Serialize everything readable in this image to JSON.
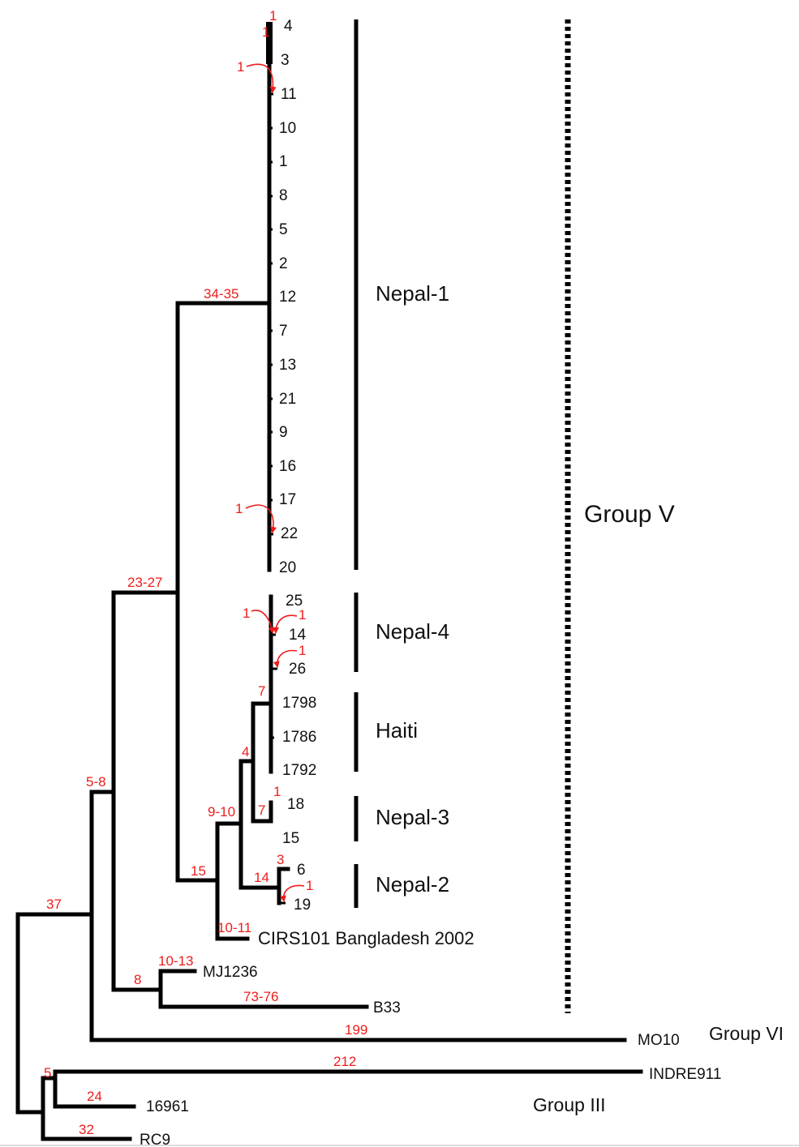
{
  "tips": {
    "t4": "4",
    "t3": "3",
    "t11": "11",
    "t10": "10",
    "t1": "1",
    "t8": "8",
    "t5": "5",
    "t2": "2",
    "t12": "12",
    "t7": "7",
    "t13": "13",
    "t21": "21",
    "t9": "9",
    "t16": "16",
    "t17": "17",
    "t22": "22",
    "t20": "20",
    "t25": "25",
    "t14": "14",
    "t26": "26",
    "t1798": "1798",
    "t1786": "1786",
    "t1792": "1792",
    "t18": "18",
    "t15": "15",
    "t6": "6",
    "t19": "19",
    "cirs": "CIRS101 Bangladesh 2002",
    "mj": "MJ1236",
    "b33": "B33",
    "mo10": "MO10",
    "indre": "INDRE911",
    "t16961": "16961",
    "rc9": "RC9"
  },
  "mutations": {
    "m4": "1",
    "m3": "1",
    "m11": "1",
    "nepal1": "34-35",
    "m22": "1",
    "m2327": "23-27",
    "m14a": "1",
    "m14b": "1",
    "m26": "1",
    "haiti": "7",
    "m4node": "4",
    "m910": "9-10",
    "m18": "1",
    "nepal3": "7",
    "m6": "3",
    "nepal2": "14",
    "m19": "1",
    "m15": "15",
    "m1011": "10-11",
    "m58": "5-8",
    "m37": "37",
    "m1013": "10-13",
    "m8": "8",
    "m7376": "73-76",
    "m199": "199",
    "m212": "212",
    "m5": "5",
    "m24": "24",
    "m32": "32"
  },
  "clades": {
    "nepal1": "Nepal-1",
    "nepal4": "Nepal-4",
    "haiti": "Haiti",
    "nepal3": "Nepal-3",
    "nepal2": "Nepal-2"
  },
  "groups": {
    "v": "Group V",
    "vi": "Group VI",
    "iii": "Group III"
  },
  "colors": {
    "mutation": "#ee1c1c",
    "branch": "#000000"
  }
}
